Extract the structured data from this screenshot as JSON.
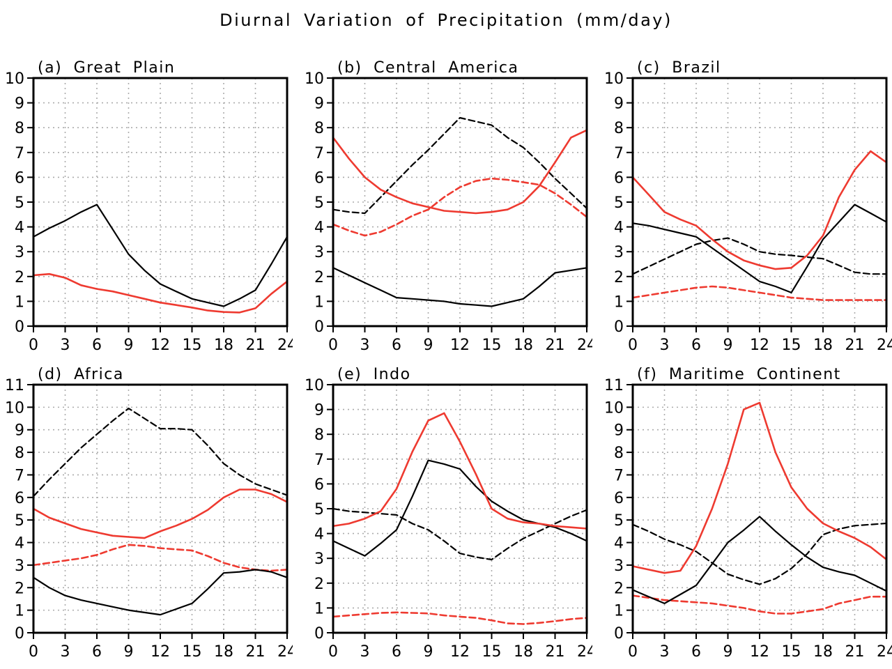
{
  "title": "Diurnal Variation of Precipitation (mm/day)",
  "colors": {
    "black": "#000000",
    "red": "#ee3a30",
    "grid": "#ababab",
    "axis": "#000000"
  },
  "x_hours": [
    0,
    1.5,
    3,
    4.5,
    6,
    7.5,
    9,
    10.5,
    12,
    13.5,
    15,
    16.5,
    18,
    19.5,
    21,
    22.5,
    24
  ],
  "chart_data": [
    {
      "type": "line",
      "title": "(a) Great Plain",
      "xlim": [
        0,
        24
      ],
      "ylim": [
        0,
        10
      ],
      "x_ticks": [
        0,
        3,
        6,
        9,
        12,
        15,
        18,
        21,
        24
      ],
      "y_tick_step": 1,
      "grid": true,
      "series": [
        {
          "name": "black-solid",
          "color": "black",
          "style": "solid",
          "values": [
            3.6,
            3.95,
            4.25,
            4.6,
            4.9,
            3.9,
            2.9,
            2.25,
            1.7,
            1.4,
            1.1,
            0.95,
            0.8,
            1.1,
            1.45,
            2.5,
            3.6
          ]
        },
        {
          "name": "red-solid",
          "color": "red",
          "style": "solid",
          "values": [
            2.05,
            2.1,
            1.95,
            1.65,
            1.5,
            1.4,
            1.25,
            1.1,
            0.95,
            0.85,
            0.75,
            0.63,
            0.57,
            0.55,
            0.72,
            1.3,
            1.8
          ]
        }
      ]
    },
    {
      "type": "line",
      "title": "(b) Central America",
      "xlim": [
        0,
        24
      ],
      "ylim": [
        0,
        10
      ],
      "x_ticks": [
        0,
        3,
        6,
        9,
        12,
        15,
        18,
        21,
        24
      ],
      "y_tick_step": 1,
      "grid": true,
      "series": [
        {
          "name": "black-dashed",
          "color": "black",
          "style": "dashed",
          "values": [
            4.7,
            4.6,
            4.55,
            5.2,
            5.85,
            6.5,
            7.1,
            7.75,
            8.4,
            8.25,
            8.1,
            7.6,
            7.2,
            6.6,
            5.95,
            5.35,
            4.75
          ]
        },
        {
          "name": "red-dashed",
          "color": "red",
          "style": "dashed",
          "values": [
            4.1,
            3.85,
            3.65,
            3.8,
            4.1,
            4.45,
            4.7,
            5.2,
            5.6,
            5.85,
            5.95,
            5.9,
            5.8,
            5.7,
            5.35,
            4.9,
            4.4
          ]
        },
        {
          "name": "black-solid",
          "color": "black",
          "style": "solid",
          "values": [
            2.35,
            2.05,
            1.75,
            1.45,
            1.15,
            1.1,
            1.05,
            1.0,
            0.9,
            0.85,
            0.8,
            0.95,
            1.1,
            1.6,
            2.15,
            2.25,
            2.35
          ]
        },
        {
          "name": "red-solid",
          "color": "red",
          "style": "solid",
          "values": [
            7.6,
            6.75,
            6.0,
            5.5,
            5.2,
            4.95,
            4.8,
            4.65,
            4.6,
            4.55,
            4.6,
            4.7,
            5.0,
            5.65,
            6.6,
            7.6,
            7.9
          ]
        }
      ]
    },
    {
      "type": "line",
      "title": "(c) Brazil",
      "xlim": [
        0,
        24
      ],
      "ylim": [
        0,
        10
      ],
      "x_ticks": [
        0,
        3,
        6,
        9,
        12,
        15,
        18,
        21,
        24
      ],
      "y_tick_step": 1,
      "grid": true,
      "series": [
        {
          "name": "black-dashed",
          "color": "black",
          "style": "dashed",
          "values": [
            2.1,
            2.4,
            2.7,
            3.0,
            3.3,
            3.45,
            3.55,
            3.3,
            3.0,
            2.9,
            2.85,
            2.78,
            2.72,
            2.45,
            2.17,
            2.1,
            2.1
          ]
        },
        {
          "name": "red-dashed",
          "color": "red",
          "style": "dashed",
          "values": [
            1.15,
            1.25,
            1.35,
            1.45,
            1.55,
            1.6,
            1.55,
            1.45,
            1.35,
            1.25,
            1.15,
            1.1,
            1.05,
            1.05,
            1.05,
            1.05,
            1.05
          ]
        },
        {
          "name": "black-solid",
          "color": "black",
          "style": "solid",
          "values": [
            4.15,
            4.05,
            3.9,
            3.75,
            3.6,
            3.15,
            2.7,
            2.25,
            1.8,
            1.6,
            1.35,
            2.4,
            3.5,
            4.2,
            4.9,
            4.55,
            4.2
          ]
        },
        {
          "name": "red-solid",
          "color": "red",
          "style": "solid",
          "values": [
            6.0,
            5.3,
            4.6,
            4.3,
            4.05,
            3.5,
            3.0,
            2.65,
            2.45,
            2.3,
            2.35,
            2.85,
            3.65,
            5.2,
            6.3,
            7.05,
            6.6
          ]
        }
      ]
    },
    {
      "type": "line",
      "title": "(d) Africa",
      "xlim": [
        0,
        24
      ],
      "ylim": [
        0,
        11
      ],
      "x_ticks": [
        0,
        3,
        6,
        9,
        12,
        15,
        18,
        21,
        24
      ],
      "y_tick_step": 1,
      "grid": true,
      "series": [
        {
          "name": "black-dashed",
          "color": "black",
          "style": "dashed",
          "values": [
            6.05,
            6.8,
            7.5,
            8.2,
            8.8,
            9.4,
            9.95,
            9.5,
            9.05,
            9.05,
            9.0,
            8.3,
            7.5,
            7.0,
            6.6,
            6.35,
            6.1
          ]
        },
        {
          "name": "red-dashed",
          "color": "red",
          "style": "dashed",
          "values": [
            3.0,
            3.1,
            3.2,
            3.3,
            3.45,
            3.7,
            3.9,
            3.85,
            3.75,
            3.7,
            3.65,
            3.4,
            3.1,
            2.9,
            2.8,
            2.75,
            2.8
          ]
        },
        {
          "name": "black-solid",
          "color": "black",
          "style": "solid",
          "values": [
            2.45,
            2.0,
            1.65,
            1.45,
            1.3,
            1.15,
            1.0,
            0.9,
            0.8,
            1.05,
            1.3,
            1.95,
            2.65,
            2.7,
            2.8,
            2.7,
            2.45
          ]
        },
        {
          "name": "red-solid",
          "color": "red",
          "style": "solid",
          "values": [
            5.5,
            5.1,
            4.85,
            4.6,
            4.45,
            4.3,
            4.25,
            4.2,
            4.5,
            4.75,
            5.05,
            5.45,
            6.0,
            6.35,
            6.35,
            6.15,
            5.8
          ]
        }
      ]
    },
    {
      "type": "line",
      "title": "(e) Indo",
      "xlim": [
        0,
        24
      ],
      "ylim": [
        0,
        10
      ],
      "x_ticks": [
        0,
        3,
        6,
        9,
        12,
        15,
        18,
        21,
        24
      ],
      "y_tick_step": 1,
      "grid": true,
      "series": [
        {
          "name": "black-dashed",
          "color": "black",
          "style": "dashed",
          "values": [
            5.0,
            4.9,
            4.85,
            4.8,
            4.75,
            4.4,
            4.15,
            3.7,
            3.2,
            3.05,
            2.95,
            3.4,
            3.8,
            4.1,
            4.4,
            4.7,
            4.95
          ]
        },
        {
          "name": "red-dashed",
          "color": "red",
          "style": "dashed",
          "values": [
            0.65,
            0.7,
            0.75,
            0.8,
            0.82,
            0.8,
            0.78,
            0.7,
            0.65,
            0.6,
            0.5,
            0.38,
            0.35,
            0.4,
            0.47,
            0.55,
            0.6
          ]
        },
        {
          "name": "black-solid",
          "color": "black",
          "style": "solid",
          "values": [
            3.7,
            3.4,
            3.1,
            3.6,
            4.15,
            5.5,
            6.95,
            6.8,
            6.6,
            5.9,
            5.3,
            4.9,
            4.55,
            4.4,
            4.25,
            4.0,
            3.7
          ]
        },
        {
          "name": "red-solid",
          "color": "red",
          "style": "solid",
          "values": [
            4.3,
            4.4,
            4.6,
            4.9,
            5.8,
            7.3,
            8.55,
            8.85,
            7.7,
            6.4,
            5.0,
            4.6,
            4.45,
            4.4,
            4.3,
            4.25,
            4.2
          ]
        }
      ]
    },
    {
      "type": "line",
      "title": "(f) Maritime Continent",
      "xlim": [
        0,
        24
      ],
      "ylim": [
        0,
        11
      ],
      "x_ticks": [
        0,
        3,
        6,
        9,
        12,
        15,
        18,
        21,
        24
      ],
      "y_tick_step": 1,
      "grid": true,
      "series": [
        {
          "name": "black-dashed",
          "color": "black",
          "style": "dashed",
          "values": [
            4.8,
            4.5,
            4.15,
            3.9,
            3.6,
            3.1,
            2.6,
            2.35,
            2.15,
            2.4,
            2.85,
            3.5,
            4.35,
            4.6,
            4.75,
            4.8,
            4.85
          ]
        },
        {
          "name": "red-dashed",
          "color": "red",
          "style": "dashed",
          "values": [
            1.65,
            1.55,
            1.45,
            1.4,
            1.35,
            1.3,
            1.2,
            1.1,
            0.95,
            0.85,
            0.85,
            0.95,
            1.05,
            1.3,
            1.45,
            1.6,
            1.6
          ]
        },
        {
          "name": "black-solid",
          "color": "black",
          "style": "solid",
          "values": [
            1.9,
            1.6,
            1.3,
            1.7,
            2.1,
            3.05,
            4.0,
            4.55,
            5.15,
            4.5,
            3.9,
            3.35,
            2.9,
            2.7,
            2.55,
            2.2,
            1.85
          ]
        },
        {
          "name": "red-solid",
          "color": "red",
          "style": "solid",
          "values": [
            2.95,
            2.8,
            2.65,
            2.75,
            3.85,
            5.5,
            7.5,
            9.9,
            10.2,
            8.0,
            6.45,
            5.5,
            4.85,
            4.5,
            4.2,
            3.8,
            3.25
          ]
        }
      ]
    }
  ]
}
